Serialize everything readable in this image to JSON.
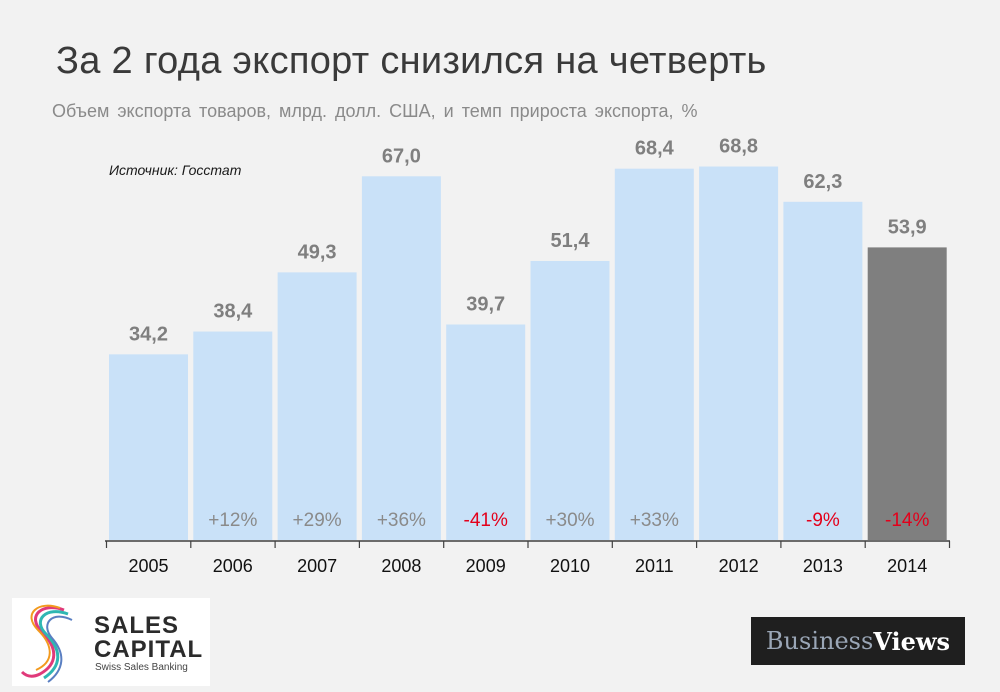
{
  "chart_data": {
    "type": "bar",
    "title": "За 2 года экспорт снизился на четверть",
    "subtitle": "Объем экспорта товаров, млрд. долл. США, и темп прироста экспорта, %",
    "source": "Источник: Госстат",
    "categories": [
      "2005",
      "2006",
      "2007",
      "2008",
      "2009",
      "2010",
      "2011",
      "2012",
      "2013",
      "2014"
    ],
    "values": [
      34.2,
      38.4,
      49.3,
      67.0,
      39.7,
      51.4,
      68.4,
      68.8,
      62.3,
      53.9
    ],
    "value_labels": [
      "34,2",
      "38,4",
      "49,3",
      "67,0",
      "39,7",
      "51,4",
      "68,4",
      "68,8",
      "62,3",
      "53,9"
    ],
    "growth_labels": [
      "",
      "+12%",
      "+29%",
      "+36%",
      "-41%",
      "+30%",
      "+33%",
      "",
      "-9%",
      "-14%"
    ],
    "growth_negative": [
      false,
      false,
      false,
      false,
      true,
      false,
      false,
      false,
      true,
      true
    ],
    "highlight_index": 9,
    "ylim": [
      0,
      70
    ],
    "grid": false,
    "colors": {
      "bar": "#c9e1f8",
      "bar_highlight": "#7f7f7f",
      "value_label": "#7f7f7f",
      "growth_positive": "#8a8a8a",
      "growth_negative": "#e3001b",
      "axis": "#404040"
    }
  },
  "logos": {
    "sales_capital": {
      "line1": "SALES",
      "line2": "CAPITAL",
      "tagline": "Swiss Sales Banking"
    },
    "business_views": {
      "part1": "Business",
      "part2": "Views"
    }
  }
}
